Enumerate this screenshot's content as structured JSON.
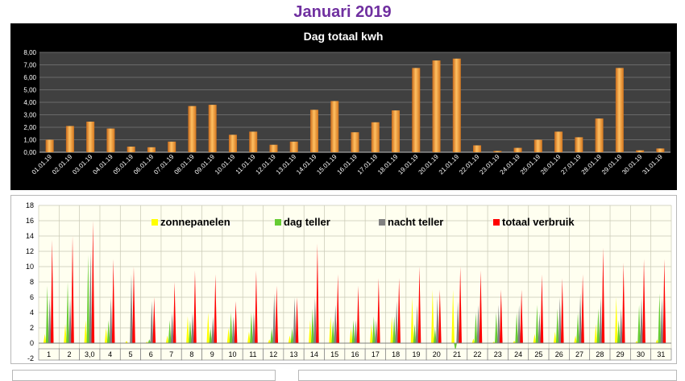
{
  "page": {
    "title": "Januari 2019"
  },
  "chart_data": [
    {
      "type": "bar",
      "title": "Dag totaal kwh",
      "categories": [
        "01.01.19",
        "02.01.19",
        "03.01.19",
        "04.01.19",
        "05.01.19",
        "06.01.19",
        "07.01.19",
        "08.01.19",
        "09.01.19",
        "10.01.19",
        "11.01.19",
        "12.01.19",
        "13.01.19",
        "14.01.19",
        "15.01.19",
        "16.01.19",
        "17.01.19",
        "18.01.19",
        "19.01.19",
        "20.01.19",
        "21.01.19",
        "22.01.19",
        "23.01.19",
        "24.01.19",
        "25.01.19",
        "26.01.19",
        "27.01.19",
        "28.01.19",
        "29.01.19",
        "30.01.19",
        "31.01.19"
      ],
      "values": [
        1.0,
        2.1,
        2.45,
        1.9,
        0.45,
        0.4,
        0.85,
        3.7,
        3.8,
        1.4,
        1.65,
        0.6,
        0.85,
        3.4,
        4.1,
        1.6,
        2.4,
        3.35,
        6.75,
        7.35,
        7.5,
        0.55,
        0.1,
        0.35,
        1.0,
        1.65,
        1.2,
        2.7,
        6.75,
        0.15,
        0.3
      ],
      "ylim": [
        0,
        8
      ],
      "yticks": [
        "0,00",
        "1,00",
        "2,00",
        "3,00",
        "4,00",
        "5,00",
        "6,00",
        "7,00",
        "8,00"
      ],
      "grid": true,
      "colors": {
        "background": "#000000",
        "plot": "#404040",
        "bar": "#F39A2E",
        "grid": "#6a6a6a",
        "text": "#ffffff"
      }
    },
    {
      "type": "bar",
      "title": "",
      "categories": [
        "1",
        "2",
        "3,0",
        "4",
        "5",
        "6",
        "7",
        "8",
        "9",
        "10",
        "11",
        "12",
        "13",
        "14",
        "15",
        "16",
        "17",
        "18",
        "19",
        "20",
        "21",
        "22",
        "23",
        "24",
        "25",
        "26",
        "27",
        "28",
        "29",
        "30",
        "31"
      ],
      "ylim": [
        -2,
        18
      ],
      "yticks": [
        "-2",
        "0",
        "2",
        "4",
        "6",
        "8",
        "10",
        "12",
        "14",
        "16",
        "18"
      ],
      "grid": true,
      "legend_placement": "top",
      "series": [
        {
          "name": "zonnepanelen",
          "color": "#FFFF00",
          "values": [
            1.2,
            2.5,
            3.0,
            2.0,
            0.3,
            0.2,
            1.0,
            3.5,
            4.0,
            2.0,
            1.5,
            0.5,
            1.0,
            3.0,
            3.5,
            2.0,
            2.5,
            3.5,
            6.0,
            7.0,
            7.0,
            0.6,
            0.2,
            0.3,
            1.2,
            1.5,
            1.0,
            2.5,
            6.0,
            0.3,
            0.5
          ]
        },
        {
          "name": "dag teller",
          "color": "#66CC33",
          "values": [
            7.5,
            8.0,
            11.5,
            3.0,
            0.0,
            0.5,
            3.0,
            3.0,
            2.0,
            4.0,
            4.0,
            2.0,
            2.0,
            4.5,
            3.0,
            3.0,
            3.5,
            3.5,
            2.5,
            2.0,
            -1.0,
            4.0,
            4.0,
            4.0,
            5.0,
            4.5,
            4.0,
            4.5,
            3.0,
            5.0,
            6.5
          ]
        },
        {
          "name": "nacht teller",
          "color": "#808080",
          "values": [
            6.0,
            6.0,
            12.0,
            6.0,
            9.0,
            5.5,
            4.0,
            4.0,
            3.5,
            3.5,
            4.0,
            6.5,
            6.0,
            6.0,
            5.0,
            3.0,
            3.0,
            5.5,
            5.0,
            6.0,
            5.5,
            5.0,
            5.0,
            5.0,
            4.0,
            6.0,
            6.5,
            6.0,
            4.5,
            6.0,
            6.0
          ]
        },
        {
          "name": "totaal verbruik",
          "color": "#FF0000",
          "values": [
            13.5,
            14.0,
            16.0,
            11.0,
            10.0,
            6.0,
            8.0,
            9.5,
            9.0,
            5.5,
            9.5,
            7.5,
            6.0,
            13.0,
            9.0,
            7.5,
            8.5,
            8.5,
            10.0,
            7.0,
            10.0,
            9.5,
            7.0,
            7.0,
            9.0,
            8.5,
            9.0,
            12.5,
            10.5,
            11.0,
            11.0
          ]
        }
      ],
      "colors": {
        "plot": "#FFFFF0",
        "grid": "#C8C8B4",
        "axis_text": "#000000"
      }
    }
  ]
}
